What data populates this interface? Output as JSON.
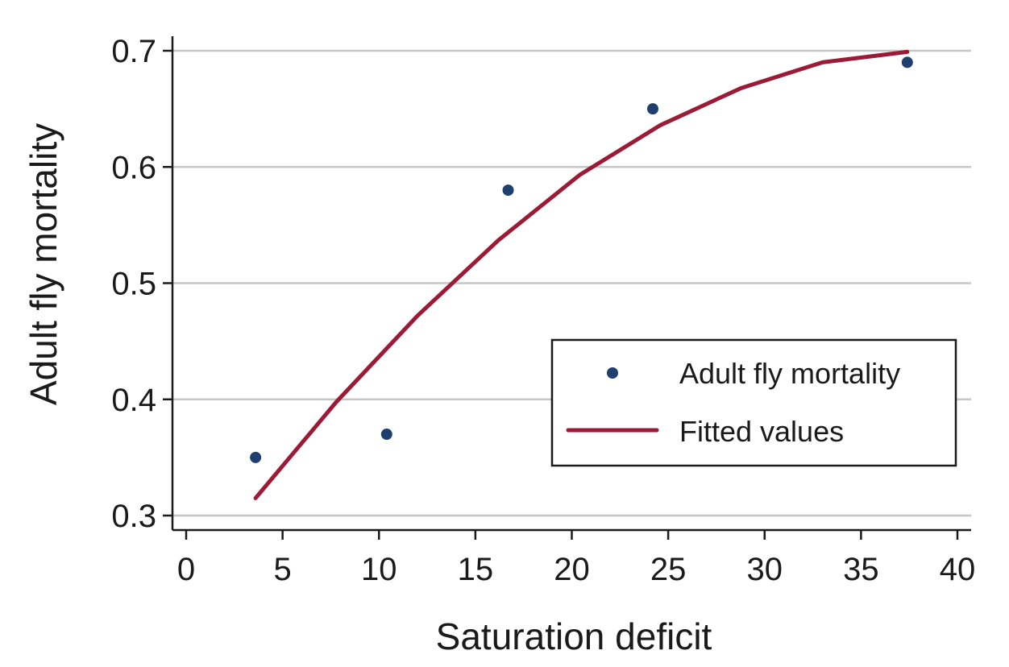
{
  "chart_data": {
    "type": "scatter",
    "xlabel": "Saturation deficit",
    "ylabel": "Adult fly mortality",
    "xlim": [
      0,
      40
    ],
    "ylim": [
      0.3,
      0.7
    ],
    "xticks": [
      0,
      5,
      10,
      15,
      20,
      25,
      30,
      35,
      40
    ],
    "yticks": [
      0.3,
      0.4,
      0.5,
      0.6,
      0.7
    ],
    "xtick_labels": [
      "0",
      "5",
      "10",
      "15",
      "20",
      "25",
      "30",
      "35",
      "40"
    ],
    "ytick_labels": [
      "0.3",
      "0.4",
      "0.5",
      "0.6",
      "0.7"
    ],
    "grid": "horizontal",
    "legend_position": "lower-right",
    "series": [
      {
        "name": "Adult fly mortality",
        "kind": "scatter",
        "color": "#1f3f6e",
        "x": [
          3.6,
          10.4,
          16.7,
          24.2,
          37.4
        ],
        "y": [
          0.35,
          0.37,
          0.58,
          0.65,
          0.69
        ]
      },
      {
        "name": "Fitted values",
        "kind": "line",
        "color": "#9b1b36",
        "x": [
          3.6,
          7.8,
          12.0,
          16.2,
          20.4,
          24.6,
          28.8,
          33.0,
          37.4
        ],
        "y": [
          0.315,
          0.398,
          0.472,
          0.537,
          0.593,
          0.636,
          0.668,
          0.69,
          0.699
        ]
      }
    ]
  }
}
